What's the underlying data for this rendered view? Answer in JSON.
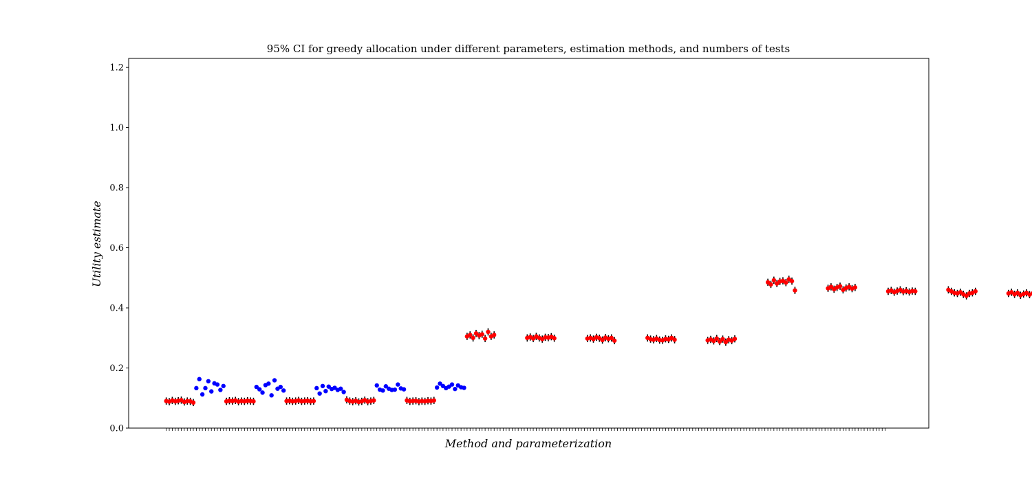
{
  "chart_data": {
    "type": "scatter",
    "title": "95% CI for greedy allocation under different parameters, estimation methods, and numbers of tests",
    "xlabel": "Method and parameterization",
    "ylabel": "Utility estimate",
    "ylim": [
      0.0,
      1.23
    ],
    "xlim": [
      -12.5,
      253.5
    ],
    "yticks": [
      "0.0",
      "0.2",
      "0.4",
      "0.6",
      "0.8",
      "1.0",
      "1.2"
    ],
    "ytick_values": [
      0.0,
      0.2,
      0.4,
      0.6,
      0.8,
      1.0,
      1.2
    ],
    "x_count": 240,
    "grid": false,
    "legend": "none",
    "colors": {
      "blue_series": "#0000ff",
      "red_series": "#ff0000",
      "error_bars": "#000000"
    },
    "series": [
      {
        "color": "red",
        "error_bars": true,
        "groups": [
          {
            "x_start": 0,
            "values": [
              0.09,
              0.088,
              0.092,
              0.089,
              0.091,
              0.093,
              0.087,
              0.09,
              0.089,
              0.085
            ]
          },
          {
            "x_start": 20,
            "values": [
              0.089,
              0.091,
              0.09,
              0.092,
              0.088,
              0.09,
              0.089,
              0.091,
              0.09,
              0.089
            ]
          },
          {
            "x_start": 40,
            "values": [
              0.09,
              0.091,
              0.089,
              0.09,
              0.092,
              0.089,
              0.09,
              0.091,
              0.089,
              0.09
            ]
          },
          {
            "x_start": 60,
            "values": [
              0.094,
              0.09,
              0.088,
              0.091,
              0.087,
              0.089,
              0.093,
              0.088,
              0.09,
              0.092
            ]
          },
          {
            "x_start": 80,
            "values": [
              0.092,
              0.089,
              0.09,
              0.091,
              0.088,
              0.09,
              0.089,
              0.091,
              0.09,
              0.092
            ]
          },
          {
            "x_start": 100,
            "values": [
              0.305,
              0.31,
              0.3,
              0.315,
              0.308,
              0.312,
              0.298,
              0.32,
              0.305,
              0.31
            ]
          },
          {
            "x_start": 120,
            "values": [
              0.3,
              0.303,
              0.298,
              0.305,
              0.3,
              0.296,
              0.302,
              0.301,
              0.304,
              0.299
            ]
          },
          {
            "x_start": 140,
            "values": [
              0.298,
              0.3,
              0.296,
              0.302,
              0.299,
              0.293,
              0.301,
              0.297,
              0.3,
              0.291
            ]
          },
          {
            "x_start": 160,
            "values": [
              0.3,
              0.296,
              0.294,
              0.298,
              0.293,
              0.292,
              0.297,
              0.295,
              0.3,
              0.294
            ]
          },
          {
            "x_start": 180,
            "values": [
              0.292,
              0.295,
              0.29,
              0.298,
              0.288,
              0.296,
              0.286,
              0.294,
              0.291,
              0.297
            ]
          },
          {
            "x_start": 200,
            "values": [
              0.485,
              0.478,
              0.492,
              0.481,
              0.488,
              0.49,
              0.484,
              0.495,
              0.489,
              0.458
            ]
          },
          {
            "x_start": 220,
            "values": [
              0.465,
              0.47,
              0.462,
              0.468,
              0.472,
              0.46,
              0.466,
              0.47,
              0.464,
              0.468
            ]
          },
          {
            "x_start": 240,
            "values": [
              0.455,
              0.458,
              0.452,
              0.456,
              0.46,
              0.454,
              0.457,
              0.453,
              0.456,
              0.455
            ]
          },
          {
            "x_start": 260,
            "values": [
              0.46,
              0.455,
              0.45,
              0.448,
              0.452,
              0.445,
              0.44,
              0.448,
              0.45,
              0.455
            ]
          },
          {
            "x_start": 280,
            "values": [
              0.448,
              0.452,
              0.445,
              0.45,
              0.442,
              0.446,
              0.45,
              0.444,
              0.448,
              0.451
            ]
          }
        ]
      },
      {
        "color": "blue",
        "error_bars": false,
        "groups": [
          {
            "x_start": 10,
            "values": [
              0.133,
              0.163,
              0.112,
              0.133,
              0.156,
              0.122,
              0.149,
              0.145,
              0.127,
              0.14
            ]
          },
          {
            "x_start": 30,
            "values": [
              0.137,
              0.129,
              0.118,
              0.143,
              0.148,
              0.109,
              0.159,
              0.131,
              0.137,
              0.125
            ]
          },
          {
            "x_start": 50,
            "values": [
              0.133,
              0.115,
              0.14,
              0.123,
              0.138,
              0.13,
              0.134,
              0.127,
              0.131,
              0.12
            ]
          },
          {
            "x_start": 70,
            "values": [
              0.142,
              0.128,
              0.125,
              0.139,
              0.131,
              0.127,
              0.128,
              0.145,
              0.132,
              0.129
            ]
          },
          {
            "x_start": 90,
            "values": [
              0.135,
              0.148,
              0.14,
              0.133,
              0.138,
              0.145,
              0.13,
              0.142,
              0.136,
              0.134
            ]
          }
        ]
      }
    ]
  }
}
